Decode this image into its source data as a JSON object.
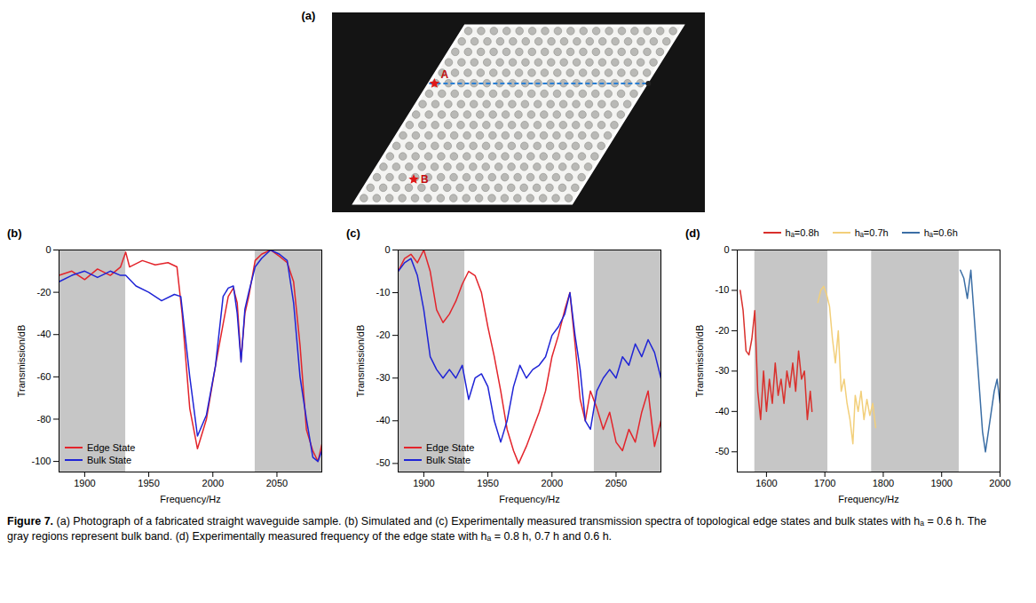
{
  "photo": {
    "panel": "(a)",
    "markers": [
      {
        "label": "A"
      },
      {
        "label": "B"
      }
    ]
  },
  "chart_data": [
    {
      "type": "line",
      "panel": "(b)",
      "xlabel": "Frequency/Hz",
      "ylabel": "Transmission/dB",
      "xlim": [
        1880,
        2085
      ],
      "xticks": [
        1900,
        1950,
        2000,
        2050
      ],
      "ylim": [
        -105,
        0
      ],
      "yticks": [
        -100,
        -80,
        -60,
        -40,
        -20,
        0
      ],
      "bands": [
        [
          1880,
          1932
        ],
        [
          2033,
          2085
        ]
      ],
      "legend": "lower left",
      "series": [
        {
          "name": "Edge State",
          "color": "#e3242b",
          "x": [
            1880,
            1890,
            1900,
            1910,
            1920,
            1928,
            1932,
            1935,
            1945,
            1955,
            1965,
            1972,
            1976,
            1982,
            1988,
            1995,
            2002,
            2008,
            2012,
            2016,
            2019,
            2022,
            2025,
            2028,
            2033,
            2038,
            2045,
            2052,
            2058,
            2063,
            2068,
            2073,
            2078,
            2082,
            2085
          ],
          "values": [
            -12,
            -10,
            -14,
            -9,
            -12,
            -8,
            -1,
            -8,
            -5,
            -7,
            -6,
            -8,
            -30,
            -75,
            -94,
            -80,
            -55,
            -35,
            -22,
            -18,
            -25,
            -52,
            -30,
            -22,
            -5,
            -2,
            0,
            -3,
            -6,
            -15,
            -45,
            -85,
            -95,
            -100,
            -92
          ]
        },
        {
          "name": "Bulk State",
          "color": "#1f24d6",
          "x": [
            1880,
            1890,
            1900,
            1910,
            1920,
            1928,
            1932,
            1940,
            1950,
            1960,
            1970,
            1975,
            1982,
            1988,
            1995,
            2002,
            2008,
            2012,
            2016,
            2019,
            2022,
            2025,
            2028,
            2033,
            2038,
            2045,
            2052,
            2058,
            2063,
            2068,
            2073,
            2078,
            2082,
            2085
          ],
          "values": [
            -15,
            -12,
            -10,
            -13,
            -10,
            -12,
            -12,
            -17,
            -20,
            -24,
            -21,
            -22,
            -60,
            -88,
            -78,
            -55,
            -22,
            -18,
            -17,
            -30,
            -53,
            -28,
            -20,
            -8,
            -4,
            0,
            -2,
            -5,
            -25,
            -60,
            -80,
            -98,
            -100,
            -95
          ]
        }
      ]
    },
    {
      "type": "line",
      "panel": "(c)",
      "xlabel": "Frequency/Hz",
      "ylabel": "Transmission/dB",
      "xlim": [
        1880,
        2085
      ],
      "xticks": [
        1900,
        1950,
        2000,
        2050
      ],
      "ylim": [
        -52,
        0
      ],
      "yticks": [
        -50,
        -40,
        -30,
        -20,
        -10,
        0
      ],
      "bands": [
        [
          1880,
          1932
        ],
        [
          2033,
          2085
        ]
      ],
      "legend": "lower left",
      "series": [
        {
          "name": "Edge State",
          "color": "#e3242b",
          "x": [
            1880,
            1885,
            1890,
            1895,
            1900,
            1905,
            1910,
            1915,
            1920,
            1925,
            1930,
            1935,
            1940,
            1945,
            1950,
            1955,
            1960,
            1965,
            1970,
            1974,
            1980,
            1985,
            1990,
            1995,
            2000,
            2005,
            2010,
            2014,
            2018,
            2022,
            2026,
            2030,
            2035,
            2040,
            2045,
            2050,
            2055,
            2060,
            2065,
            2070,
            2075,
            2080,
            2085
          ],
          "values": [
            -5,
            -2,
            -1,
            -3,
            0,
            -5,
            -14,
            -17,
            -15,
            -12,
            -8,
            -5,
            -6,
            -10,
            -18,
            -25,
            -33,
            -42,
            -47,
            -50,
            -46,
            -42,
            -38,
            -33,
            -25,
            -20,
            -14,
            -10,
            -22,
            -35,
            -40,
            -33,
            -37,
            -42,
            -38,
            -45,
            -47,
            -42,
            -45,
            -38,
            -33,
            -46,
            -40
          ]
        },
        {
          "name": "Bulk State",
          "color": "#1f24d6",
          "x": [
            1880,
            1885,
            1890,
            1895,
            1900,
            1905,
            1910,
            1915,
            1920,
            1925,
            1930,
            1935,
            1940,
            1945,
            1950,
            1955,
            1960,
            1965,
            1970,
            1975,
            1980,
            1985,
            1990,
            1995,
            2000,
            2005,
            2010,
            2014,
            2018,
            2022,
            2026,
            2030,
            2035,
            2040,
            2045,
            2050,
            2055,
            2060,
            2065,
            2070,
            2075,
            2080,
            2085
          ],
          "values": [
            -5,
            -3,
            -2,
            -6,
            -14,
            -25,
            -28,
            -30,
            -28,
            -30,
            -27,
            -35,
            -30,
            -29,
            -32,
            -40,
            -45,
            -40,
            -32,
            -27,
            -30,
            -28,
            -27,
            -25,
            -20,
            -18,
            -15,
            -10,
            -20,
            -28,
            -40,
            -42,
            -33,
            -30,
            -28,
            -30,
            -25,
            -27,
            -22,
            -25,
            -21,
            -24,
            -30
          ]
        }
      ]
    },
    {
      "type": "line",
      "panel": "(d)",
      "xlabel": "Frequency/Hz",
      "ylabel": "Transmission/dB",
      "xlim": [
        1550,
        2000
      ],
      "xticks": [
        1600,
        1700,
        1800,
        1900,
        2000
      ],
      "ylim": [
        -55,
        0
      ],
      "yticks": [
        -50,
        -40,
        -30,
        -20,
        -10,
        0
      ],
      "bands": [
        [
          1580,
          1705
        ],
        [
          1780,
          1930
        ]
      ],
      "legend": "top",
      "series": [
        {
          "name": "hₐ=0.8h",
          "color": "#d9302c",
          "x": [
            1555,
            1560,
            1565,
            1570,
            1575,
            1580,
            1585,
            1590,
            1595,
            1600,
            1605,
            1610,
            1615,
            1620,
            1625,
            1630,
            1635,
            1640,
            1645,
            1650,
            1655,
            1660,
            1665,
            1670,
            1675,
            1678
          ],
          "values": [
            -10,
            -15,
            -25,
            -26,
            -22,
            -15,
            -35,
            -42,
            -30,
            -40,
            -32,
            -38,
            -28,
            -36,
            -32,
            -38,
            -30,
            -34,
            -28,
            -35,
            -25,
            -32,
            -30,
            -42,
            -35,
            -40
          ]
        },
        {
          "name": "hₐ=0.7h",
          "color": "#f2cf7a",
          "x": [
            1688,
            1693,
            1698,
            1703,
            1708,
            1713,
            1718,
            1723,
            1728,
            1733,
            1738,
            1743,
            1748,
            1752,
            1757,
            1762,
            1767,
            1772,
            1777,
            1782,
            1787
          ],
          "values": [
            -13,
            -10,
            -9,
            -11,
            -14,
            -22,
            -28,
            -20,
            -35,
            -32,
            -38,
            -42,
            -48,
            -36,
            -40,
            -35,
            -42,
            -37,
            -41,
            -38,
            -44
          ]
        },
        {
          "name": "hₐ=0.6h",
          "color": "#3b6ea5",
          "x": [
            1932,
            1938,
            1944,
            1950,
            1955,
            1960,
            1965,
            1970,
            1975,
            1980,
            1985,
            1990,
            1995,
            2000
          ],
          "values": [
            -5,
            -7,
            -12,
            -5,
            -15,
            -25,
            -35,
            -45,
            -50,
            -45,
            -40,
            -35,
            -32,
            -38
          ]
        }
      ]
    }
  ],
  "caption": {
    "label": "Figure 7.",
    "text": "(a) Photograph of a fabricated straight waveguide sample. (b) Simulated and (c) Experimentally measured transmission spectra of topological edge states and bulk states with hₐ = 0.6 h. The gray regions represent bulk band. (d) Experimentally measured frequency of the edge state with hₐ = 0.8 h, 0.7 h and 0.6 h."
  }
}
